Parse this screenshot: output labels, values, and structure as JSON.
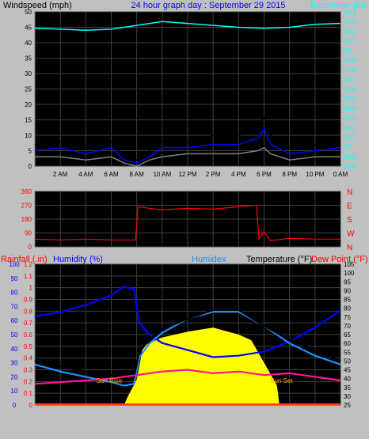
{
  "chart_data": [
    {
      "type": "line",
      "title": "24 hour graph day : September 29 2015",
      "ylabel_left": "Windspeed (mph)",
      "ylabel_right": "Barometer (in)",
      "x_ticks": [
        "2 AM",
        "4 AM",
        "6 AM",
        "8 AM",
        "10 AM",
        "12 PM",
        "2 PM",
        "4 PM",
        "6 PM",
        "8 PM",
        "10 PM",
        "0 AM"
      ],
      "ylim_left": [
        0,
        50
      ],
      "y_ticks_left": [
        "0",
        "5",
        "10",
        "15",
        "20",
        "25",
        "30",
        "35",
        "40",
        "45",
        "50"
      ],
      "ylim_right": [
        28.8,
        30.4
      ],
      "y_ticks_right": [
        "28.8",
        "28.9",
        "29",
        "29.1",
        "29.2",
        "29.3",
        "29.4",
        "29.5",
        "29.6",
        "29.7",
        "29.8",
        "29.9",
        "30",
        "30.1",
        "30.2",
        "30.3",
        "30.4"
      ],
      "grid": true,
      "series": [
        {
          "name": "Barometer (in)",
          "axis": "right",
          "color": "#00ffff",
          "x": [
            0,
            2,
            4,
            6,
            8,
            10,
            12,
            14,
            16,
            18,
            20,
            22,
            24
          ],
          "values": [
            30.23,
            30.22,
            30.21,
            30.22,
            30.26,
            30.3,
            30.28,
            30.26,
            30.24,
            30.23,
            30.24,
            30.27,
            30.28
          ]
        },
        {
          "color": "#000000",
          "axis": "left",
          "x": [
            0,
            2,
            4,
            6,
            7,
            8,
            9,
            10,
            12,
            14,
            16,
            17.5,
            18,
            18.5,
            20,
            22,
            24
          ],
          "values": [
            7,
            8,
            6,
            8,
            3,
            2,
            5,
            8,
            8,
            10,
            10,
            12,
            16,
            10,
            6,
            7,
            8
          ]
        },
        {
          "color": "#0000ff",
          "axis": "left",
          "x": [
            0,
            2,
            4,
            6,
            7,
            8,
            9,
            10,
            12,
            14,
            16,
            17.5,
            18,
            18.5,
            20,
            22,
            24
          ],
          "values": [
            5,
            6,
            4,
            6,
            2,
            1,
            3,
            6,
            6,
            7,
            7,
            9,
            12,
            7,
            4,
            5,
            6
          ]
        },
        {
          "color": "#808080",
          "axis": "left",
          "x": [
            0,
            2,
            4,
            6,
            7,
            8,
            9,
            10,
            12,
            14,
            16,
            17.5,
            18,
            18.5,
            20,
            22,
            24
          ],
          "values": [
            3,
            3,
            2,
            3,
            1,
            0,
            2,
            3,
            4,
            4,
            4,
            5,
            6,
            4,
            2,
            3,
            3
          ]
        }
      ]
    },
    {
      "type": "line",
      "ylim": [
        0,
        360
      ],
      "y_ticks": [
        "0",
        "90",
        "180",
        "270",
        "360"
      ],
      "y_ticks_right": [
        "N",
        "W",
        "S",
        "E",
        "N"
      ],
      "series": [
        {
          "color": "#ff0000",
          "x": [
            0,
            2,
            4,
            6,
            7.9,
            8.1,
            10,
            12,
            14,
            16,
            17.4,
            17.6,
            18,
            18.5,
            20,
            22,
            24
          ],
          "values": [
            50,
            45,
            50,
            45,
            45,
            260,
            240,
            250,
            245,
            260,
            270,
            50,
            100,
            40,
            55,
            50,
            50
          ]
        }
      ]
    },
    {
      "type": "area",
      "ylabel_rainfall": "Rainfall (.in)",
      "ylabel_humidity": "Humidity (%)",
      "legend_humidex": "Humidex",
      "ylabel_temperature": "Temperature (°F)",
      "ylabel_dewpoint": "Dew Point (°F)",
      "y_ticks_humidity": [
        "0",
        "10",
        "20",
        "30",
        "40",
        "50",
        "60",
        "70",
        "80",
        "90",
        "100"
      ],
      "ylim_humidity": [
        0,
        100
      ],
      "y_ticks_rain": [
        "0",
        "0.1",
        "0.2",
        "0.3",
        "0.4",
        "0.5",
        "0.6",
        "0.7",
        "0.8",
        "0.9",
        "1",
        "1.1",
        "1.2"
      ],
      "ylim_rain": [
        0,
        1.2
      ],
      "y_ticks_temp": [
        "25",
        "30",
        "35",
        "40",
        "45",
        "50",
        "55",
        "60",
        "65",
        "70",
        "75",
        "80",
        "85",
        "90",
        "95",
        "100",
        "105"
      ],
      "ylim_temp": [
        25,
        105
      ],
      "sun_rise": "Sun Rise",
      "sun_set": "Sun Set",
      "sun_rise_hour": 7.1,
      "sun_set_hour": 19.1,
      "series": [
        {
          "name": "Humidity (%)",
          "axis": "humidity",
          "color": "#0000ff",
          "x": [
            0,
            2,
            4,
            6,
            7,
            7.8,
            8.2,
            9,
            10,
            12,
            14,
            16,
            18,
            20,
            22,
            24
          ],
          "values": [
            63,
            66,
            71,
            78,
            84,
            82,
            58,
            50,
            44,
            39,
            34,
            35,
            38,
            45,
            55,
            67
          ]
        },
        {
          "name": "Humidex",
          "axis": "temp",
          "color": "#1e90ff",
          "x": [
            0,
            2,
            4,
            6,
            7,
            7.8,
            8.2,
            9,
            10,
            12,
            14,
            16,
            18,
            20,
            22,
            24
          ],
          "values": [
            48,
            44,
            41,
            38,
            36,
            37,
            52,
            60,
            66,
            74,
            78,
            78,
            70,
            60,
            53,
            48
          ]
        },
        {
          "name": "Temperature (°F)",
          "axis": "temp",
          "color": "#000000",
          "x": [
            0,
            2,
            4,
            6,
            7,
            7.8,
            8.2,
            9,
            10,
            12,
            14,
            16,
            18,
            20,
            22,
            24
          ],
          "values": [
            50,
            47,
            44,
            42,
            40,
            41,
            55,
            62,
            68,
            74,
            79,
            79,
            70,
            62,
            56,
            50
          ]
        },
        {
          "name": "Dew Point (°F)",
          "axis": "temp",
          "color": "#ff1493",
          "x": [
            0,
            2,
            4,
            6,
            7,
            8,
            10,
            12,
            14,
            16,
            18,
            20,
            22,
            24
          ],
          "values": [
            37,
            38,
            39,
            40,
            41,
            42,
            44,
            45,
            43,
            44,
            42,
            43,
            41,
            39
          ]
        },
        {
          "name": "Solar (unlabeled)",
          "axis": "humidity",
          "color": "#ffff00",
          "x": [
            0,
            7,
            7.3,
            8,
            8.5,
            10,
            12,
            14,
            16,
            17,
            18,
            18.5,
            19,
            19.1,
            19.2,
            24
          ],
          "values": [
            0,
            0,
            6,
            18,
            42,
            48,
            52,
            55,
            50,
            46,
            30,
            22,
            14,
            8,
            0,
            0
          ]
        }
      ]
    }
  ]
}
